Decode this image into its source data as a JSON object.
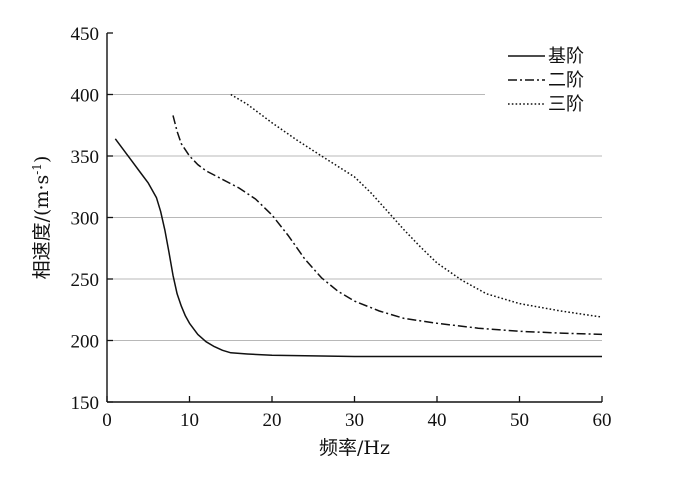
{
  "chart_data": {
    "type": "line",
    "xlabel": "频率/Hz",
    "ylabel_main": "相速度/(m·s",
    "ylabel_sup": "-1",
    "ylabel_end": ")",
    "xlim": [
      0,
      60
    ],
    "ylim": [
      150,
      450
    ],
    "xticks": [
      0,
      10,
      20,
      30,
      40,
      50,
      60
    ],
    "yticks": [
      150,
      200,
      250,
      300,
      350,
      400,
      450
    ],
    "grid": "horizontal",
    "legend_position": "top-right",
    "colors": {
      "axis": "#111111",
      "grid": "#b8b8b8",
      "series": "#111111"
    },
    "series": [
      {
        "name": "基阶",
        "style": "solid",
        "x": [
          1,
          2,
          3,
          4,
          5,
          6,
          6.5,
          7,
          7.5,
          8,
          8.5,
          9,
          9.5,
          10,
          11,
          12,
          13,
          14,
          15,
          17,
          20,
          25,
          30,
          40,
          50,
          60
        ],
        "y": [
          364,
          355,
          346,
          337,
          328,
          316,
          305,
          290,
          272,
          253,
          238,
          228,
          220,
          214,
          205,
          199,
          195,
          192,
          190,
          189,
          188,
          187.5,
          187,
          187,
          187,
          187
        ]
      },
      {
        "name": "二阶",
        "style": "dashdot",
        "x": [
          8,
          8.5,
          9,
          10,
          11,
          12,
          14,
          16,
          18,
          20,
          22,
          24,
          26,
          28,
          30,
          33,
          36,
          40,
          45,
          50,
          55,
          60
        ],
        "y": [
          383,
          370,
          360,
          350,
          343,
          338,
          331,
          324,
          315,
          302,
          285,
          266,
          251,
          240,
          232,
          224,
          218,
          214,
          210,
          207.5,
          206,
          205
        ]
      },
      {
        "name": "三阶",
        "style": "dotted",
        "x": [
          15,
          17,
          20,
          23,
          26,
          30,
          32,
          34,
          36,
          38,
          40,
          43,
          46,
          50,
          55,
          60
        ],
        "y": [
          400,
          392,
          377,
          363,
          350,
          333,
          320,
          305,
          290,
          276,
          263,
          249,
          238,
          230,
          224,
          219
        ]
      }
    ]
  }
}
